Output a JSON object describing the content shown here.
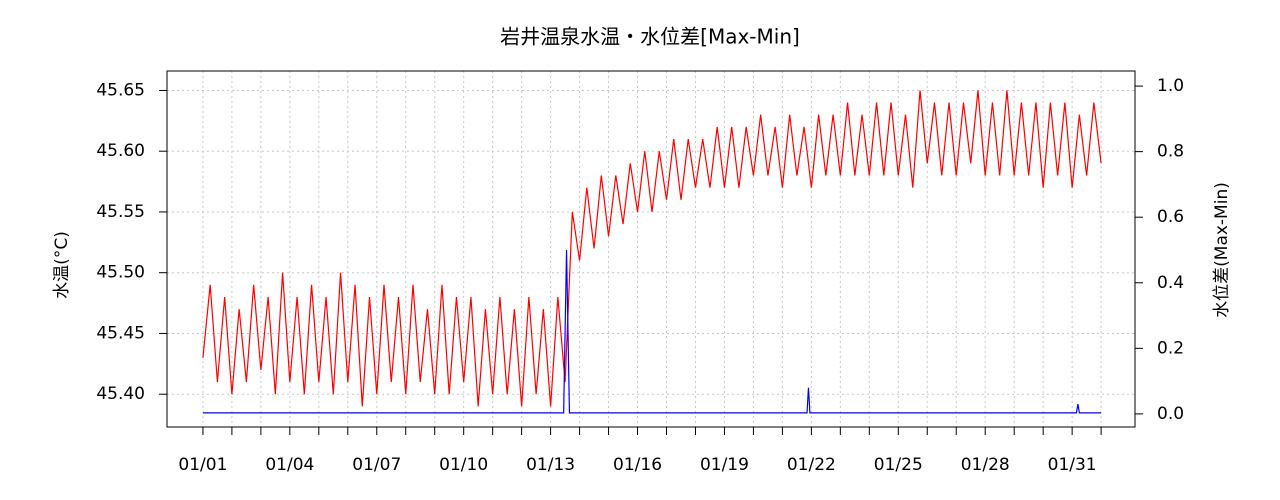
{
  "chart_data": {
    "type": "line",
    "title": "岩井温泉水温・水位差[Max-Min]",
    "ylabel": "水温(°C)",
    "y2label": "水位差(Max-Min)",
    "xlim": [
      -0.24,
      33.17
    ],
    "xticks": [
      {
        "value": 1,
        "label": "01/01"
      },
      {
        "value": 4,
        "label": "01/04"
      },
      {
        "value": 7,
        "label": "01/07"
      },
      {
        "value": 10,
        "label": "01/10"
      },
      {
        "value": 13,
        "label": "01/13"
      },
      {
        "value": 16,
        "label": "01/16"
      },
      {
        "value": 19,
        "label": "01/19"
      },
      {
        "value": 22,
        "label": "01/22"
      },
      {
        "value": 25,
        "label": "01/25"
      },
      {
        "value": 28,
        "label": "01/28"
      },
      {
        "value": 31,
        "label": "01/31"
      }
    ],
    "xminor_ticks": [
      2,
      3,
      5,
      6,
      8,
      9,
      11,
      12,
      14,
      15,
      17,
      18,
      20,
      21,
      23,
      24,
      26,
      27,
      29,
      30,
      32
    ],
    "ylim": [
      45.373,
      45.666
    ],
    "yticks": [
      {
        "value": 45.4,
        "label": "45.40"
      },
      45.45,
      {
        "value": 45.5,
        "label": "45.50"
      },
      45.55,
      {
        "value": 45.6,
        "label": "45.60"
      },
      45.65
    ],
    "y2lim": [
      -0.04,
      1.046
    ],
    "y2ticks": [
      {
        "value": 0,
        "label": "0.0"
      },
      0.2,
      0.4,
      0.6,
      0.8,
      {
        "value": 1,
        "label": "1.0"
      }
    ],
    "grid": true,
    "series": [
      {
        "name": "水温",
        "color": "#ff0000",
        "axis": "y",
        "x": [
          1,
          1.25,
          1.5,
          1.75,
          2,
          2.25,
          2.5,
          2.75,
          3,
          3.25,
          3.5,
          3.75,
          4,
          4.25,
          4.5,
          4.75,
          5,
          5.25,
          5.5,
          5.75,
          6,
          6.25,
          6.5,
          6.75,
          7,
          7.25,
          7.5,
          7.75,
          8,
          8.25,
          8.5,
          8.75,
          9,
          9.25,
          9.5,
          9.75,
          10,
          10.25,
          10.5,
          10.75,
          11,
          11.25,
          11.5,
          11.75,
          12,
          12.25,
          12.5,
          12.75,
          13,
          13.25,
          13.5,
          13.75,
          14,
          14.25,
          14.5,
          14.75,
          15,
          15.25,
          15.5,
          15.75,
          16,
          16.25,
          16.5,
          16.75,
          17,
          17.25,
          17.5,
          17.75,
          18,
          18.25,
          18.5,
          18.75,
          19,
          19.25,
          19.5,
          19.75,
          20,
          20.25,
          20.5,
          20.75,
          21,
          21.25,
          21.5,
          21.75,
          22,
          22.25,
          22.5,
          22.75,
          23,
          23.25,
          23.5,
          23.75,
          24,
          24.25,
          24.5,
          24.75,
          25,
          25.25,
          25.5,
          25.75,
          26,
          26.25,
          26.5,
          26.75,
          27,
          27.25,
          27.5,
          27.75,
          28,
          28.25,
          28.5,
          28.75,
          29,
          29.25,
          29.5,
          29.75,
          30,
          30.25,
          30.5,
          30.75,
          31,
          31.25,
          31.5,
          31.75,
          32
        ],
        "values": [
          45.43,
          45.49,
          45.41,
          45.48,
          45.4,
          45.47,
          45.41,
          45.49,
          45.42,
          45.48,
          45.4,
          45.5,
          45.41,
          45.48,
          45.4,
          45.49,
          45.41,
          45.48,
          45.4,
          45.5,
          45.41,
          45.49,
          45.39,
          45.48,
          45.4,
          45.49,
          45.41,
          45.48,
          45.4,
          45.49,
          45.41,
          45.47,
          45.4,
          45.49,
          45.4,
          45.48,
          45.41,
          45.48,
          45.39,
          45.47,
          45.4,
          45.48,
          45.4,
          45.47,
          45.39,
          45.48,
          45.4,
          45.47,
          45.39,
          45.48,
          45.41,
          45.55,
          45.51,
          45.57,
          45.52,
          45.58,
          45.53,
          45.58,
          45.54,
          45.59,
          45.55,
          45.6,
          45.55,
          45.6,
          45.56,
          45.61,
          45.56,
          45.61,
          45.57,
          45.61,
          45.57,
          45.62,
          45.57,
          45.62,
          45.57,
          45.62,
          45.58,
          45.63,
          45.58,
          45.62,
          45.57,
          45.63,
          45.58,
          45.62,
          45.57,
          45.63,
          45.58,
          45.63,
          45.58,
          45.64,
          45.58,
          45.63,
          45.58,
          45.64,
          45.58,
          45.64,
          45.58,
          45.63,
          45.57,
          45.65,
          45.59,
          45.64,
          45.58,
          45.64,
          45.58,
          45.64,
          45.59,
          45.65,
          45.58,
          45.64,
          45.58,
          45.65,
          45.58,
          45.64,
          45.58,
          45.64,
          45.57,
          45.64,
          45.58,
          45.64,
          45.57,
          45.63,
          45.58,
          45.64,
          45.59
        ]
      },
      {
        "name": "水位差",
        "color": "#0000ff",
        "axis": "y2",
        "x": [
          1,
          13.45,
          13.55,
          13.65,
          21.85,
          21.9,
          21.95,
          31.15,
          31.2,
          31.25,
          32
        ],
        "values": [
          0.003,
          0.003,
          0.5,
          0.003,
          0.003,
          0.08,
          0.003,
          0.003,
          0.03,
          0.003,
          0.003
        ]
      }
    ]
  }
}
